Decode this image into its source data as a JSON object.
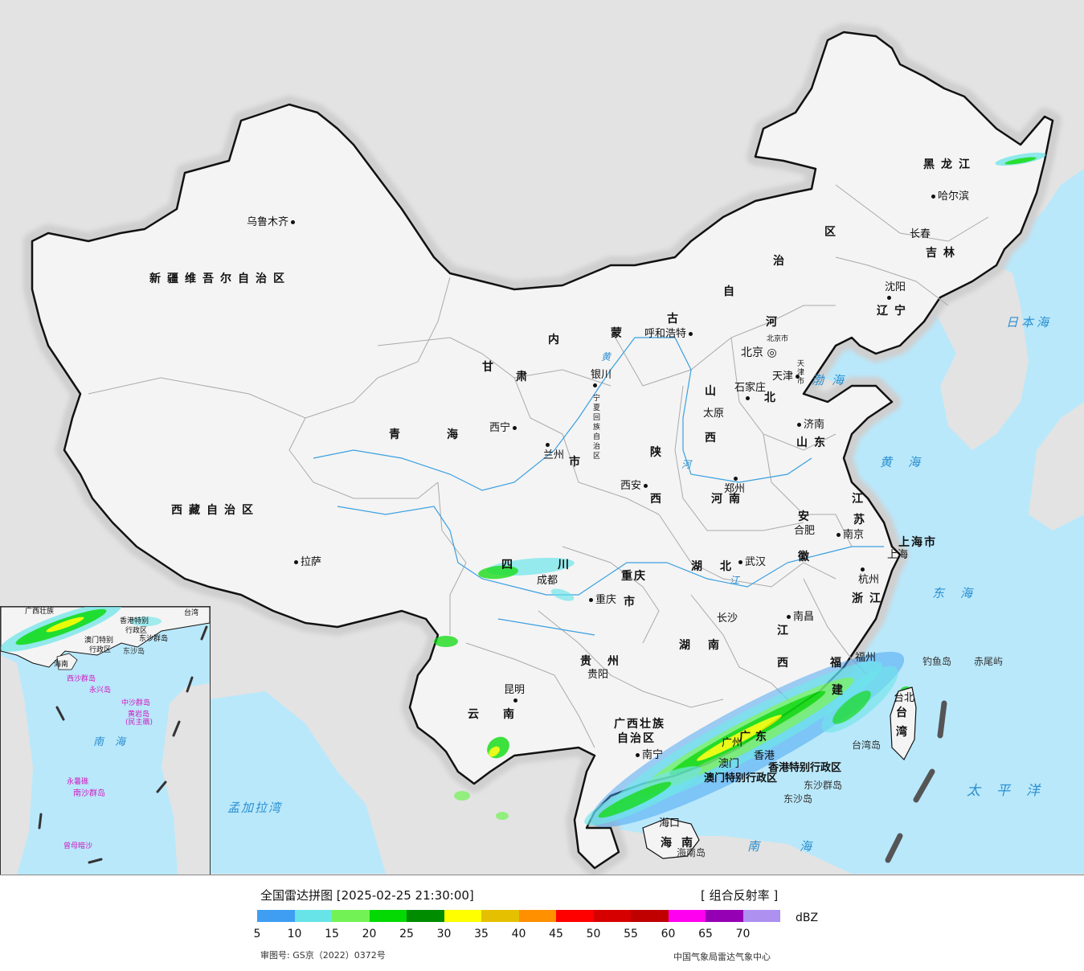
{
  "map": {
    "provinces": [
      {
        "id": "xinjiang",
        "text": "新疆维吾尔自治区"
      },
      {
        "id": "xizang",
        "text": "西藏自治区"
      },
      {
        "id": "qinghai_a",
        "text": "青"
      },
      {
        "id": "qinghai_b",
        "text": "海"
      },
      {
        "id": "gansu_a",
        "text": "甘"
      },
      {
        "id": "gansu_b",
        "text": "肃"
      },
      {
        "id": "nmg_a",
        "text": "内"
      },
      {
        "id": "nmg_b",
        "text": "蒙"
      },
      {
        "id": "nmg_c",
        "text": "古"
      },
      {
        "id": "nmg_d",
        "text": "自"
      },
      {
        "id": "nmg_e",
        "text": "治"
      },
      {
        "id": "nmg_f",
        "text": "区"
      },
      {
        "id": "heilongjiang",
        "text": "黑龙江"
      },
      {
        "id": "jilin",
        "text": "吉林"
      },
      {
        "id": "liaoning",
        "text": "辽宁"
      },
      {
        "id": "hebei_a",
        "text": "河"
      },
      {
        "id": "hebei_b",
        "text": "北"
      },
      {
        "id": "shanxi_a",
        "text": "山"
      },
      {
        "id": "shanxi_b",
        "text": "西"
      },
      {
        "id": "shandong",
        "text": "山东"
      },
      {
        "id": "shaanxi_a",
        "text": "陕"
      },
      {
        "id": "shaanxi_b",
        "text": "西"
      },
      {
        "id": "henan",
        "text": "河南"
      },
      {
        "id": "jiangsu_a",
        "text": "江"
      },
      {
        "id": "jiangsu_b",
        "text": "苏"
      },
      {
        "id": "anhui_a",
        "text": "安"
      },
      {
        "id": "anhui_b",
        "text": "徽"
      },
      {
        "id": "shanghai",
        "text": "上海市"
      },
      {
        "id": "zhejiang",
        "text": "浙江"
      },
      {
        "id": "hubei",
        "text": "湖北"
      },
      {
        "id": "sichuan_a",
        "text": "四"
      },
      {
        "id": "sichuan_b",
        "text": "川"
      },
      {
        "id": "chongqing_a",
        "text": "重庆"
      },
      {
        "id": "chongqing_b",
        "text": "市"
      },
      {
        "id": "hunan",
        "text": "湖南"
      },
      {
        "id": "jiangxi_a",
        "text": "江"
      },
      {
        "id": "jiangxi_b",
        "text": "西"
      },
      {
        "id": "fujian_a",
        "text": "福"
      },
      {
        "id": "fujian_b",
        "text": "建"
      },
      {
        "id": "guizhou",
        "text": "贵州"
      },
      {
        "id": "yunnan",
        "text": "云南"
      },
      {
        "id": "guangxi_a",
        "text": "广西壮族"
      },
      {
        "id": "guangxi_b",
        "text": "自治区"
      },
      {
        "id": "guangdong",
        "text": "广东"
      },
      {
        "id": "hainan",
        "text": "海南"
      },
      {
        "id": "taiwan_a",
        "text": "台"
      },
      {
        "id": "taiwan_b",
        "text": "湾"
      },
      {
        "id": "ningxia",
        "text": "宁夏回族自治区"
      },
      {
        "id": "gansu_c",
        "text": "市"
      },
      {
        "id": "beijing_city",
        "text": "北京市"
      },
      {
        "id": "tianjin_city",
        "text": "天津市"
      },
      {
        "id": "hk",
        "text": "香港特别行政区"
      },
      {
        "id": "macau",
        "text": "澳门特别行政区"
      }
    ],
    "cities": [
      {
        "id": "urumqi",
        "text": "乌鲁木齐"
      },
      {
        "id": "lhasa",
        "text": "拉萨"
      },
      {
        "id": "xining",
        "text": "西宁"
      },
      {
        "id": "lanzhou",
        "text": "兰州"
      },
      {
        "id": "yinchuan",
        "text": "银川"
      },
      {
        "id": "hohhot",
        "text": "呼和浩特"
      },
      {
        "id": "harbin",
        "text": "哈尔滨"
      },
      {
        "id": "changchun",
        "text": "长春"
      },
      {
        "id": "shenyang",
        "text": "沈阳"
      },
      {
        "id": "beijing",
        "text": "北京"
      },
      {
        "id": "tianjin",
        "text": "天津"
      },
      {
        "id": "shijiazhuang",
        "text": "石家庄"
      },
      {
        "id": "taiyuan",
        "text": "太原"
      },
      {
        "id": "jinan",
        "text": "济南"
      },
      {
        "id": "xian",
        "text": "西安"
      },
      {
        "id": "zhengzhou",
        "text": "郑州"
      },
      {
        "id": "hefei",
        "text": "合肥"
      },
      {
        "id": "nanjing",
        "text": "南京"
      },
      {
        "id": "shanghai",
        "text": "上海"
      },
      {
        "id": "hangzhou",
        "text": "杭州"
      },
      {
        "id": "wuhan",
        "text": "武汉"
      },
      {
        "id": "chengdu",
        "text": "成都"
      },
      {
        "id": "chongqing",
        "text": "重庆"
      },
      {
        "id": "changsha",
        "text": "长沙"
      },
      {
        "id": "nanchang",
        "text": "南昌"
      },
      {
        "id": "fuzhou",
        "text": "福州"
      },
      {
        "id": "guiyang",
        "text": "贵阳"
      },
      {
        "id": "kunming",
        "text": "昆明"
      },
      {
        "id": "nanning",
        "text": "南宁"
      },
      {
        "id": "guangzhou",
        "text": "广州"
      },
      {
        "id": "hongkong",
        "text": "香港"
      },
      {
        "id": "macao",
        "text": "澳门"
      },
      {
        "id": "haikou",
        "text": "海口"
      },
      {
        "id": "taipei",
        "text": "台北"
      }
    ],
    "seas": [
      {
        "id": "bohai",
        "text": "渤海"
      },
      {
        "id": "huanghai",
        "text": "黄海"
      },
      {
        "id": "donghai",
        "text": "东海"
      },
      {
        "id": "nanhai",
        "text": "南海"
      },
      {
        "id": "taipingyang",
        "text": "太平洋"
      },
      {
        "id": "ribenhai",
        "text": "日本海"
      },
      {
        "id": "mengjialawan",
        "text": "孟加拉湾"
      }
    ],
    "islands": [
      {
        "id": "diaoyudao",
        "text": "钓鱼岛"
      },
      {
        "id": "chiweiyu",
        "text": "赤尾屿"
      },
      {
        "id": "taiwandao",
        "text": "台湾岛"
      },
      {
        "id": "dongshaqundao",
        "text": "东沙群岛"
      },
      {
        "id": "dongshadao",
        "text": "东沙岛"
      },
      {
        "id": "hainandao",
        "text": "海南岛"
      }
    ],
    "rivers": [
      {
        "id": "huanghe_a",
        "text": "黄"
      },
      {
        "id": "huanghe_b",
        "text": "河"
      },
      {
        "id": "changjiang",
        "text": "江"
      }
    ]
  },
  "inset": {
    "labels": [
      {
        "id": "guangxi",
        "text": "广西壮族"
      },
      {
        "id": "hk",
        "text": "香港特别"
      },
      {
        "id": "hk2",
        "text": "行政区"
      },
      {
        "id": "macau",
        "text": "澳门特别"
      },
      {
        "id": "macau2",
        "text": "行政区"
      },
      {
        "id": "dongsha",
        "text": "东沙群岛"
      },
      {
        "id": "dongshadao",
        "text": "东沙岛"
      },
      {
        "id": "hainan",
        "text": "海南"
      },
      {
        "id": "xisha",
        "text": "西沙群岛"
      },
      {
        "id": "yongxing",
        "text": "永兴岛"
      },
      {
        "id": "zhongsha",
        "text": "中沙群岛"
      },
      {
        "id": "huangyan",
        "text": "黄岩岛"
      },
      {
        "id": "minzhujiao",
        "text": "(民主礁)"
      },
      {
        "id": "nanhai",
        "text": "南海"
      },
      {
        "id": "nansha",
        "text": "南沙群岛"
      },
      {
        "id": "yongshu",
        "text": "永暑礁"
      },
      {
        "id": "zengmu",
        "text": "曾母暗沙"
      },
      {
        "id": "taiwan",
        "text": "台湾"
      }
    ]
  },
  "legend": {
    "title": "全国雷达拼图 [2025-02-25 21:30:00]",
    "product": "[ 组合反射率 ]",
    "unit": "dBZ",
    "colors": [
      "#3f9ef2",
      "#66e4e8",
      "#73f255",
      "#04d904",
      "#008c00",
      "#ffff00",
      "#e5c000",
      "#ff9000",
      "#ff0000",
      "#d60000",
      "#c00000",
      "#ff00f0",
      "#9600b4",
      "#ad90f0"
    ],
    "ticks": [
      "5",
      "10",
      "15",
      "20",
      "25",
      "30",
      "35",
      "40",
      "45",
      "50",
      "55",
      "60",
      "65",
      "70"
    ],
    "approval": "审图号: GS京（2022）0372号",
    "agency": "中国气象局雷达气象中心"
  },
  "colors": {
    "land_outside": "#e3e3e3",
    "china_land": "#f4f4f4",
    "sea": "#b9e8fb",
    "river": "#3aa0e0",
    "border": "#111111"
  }
}
